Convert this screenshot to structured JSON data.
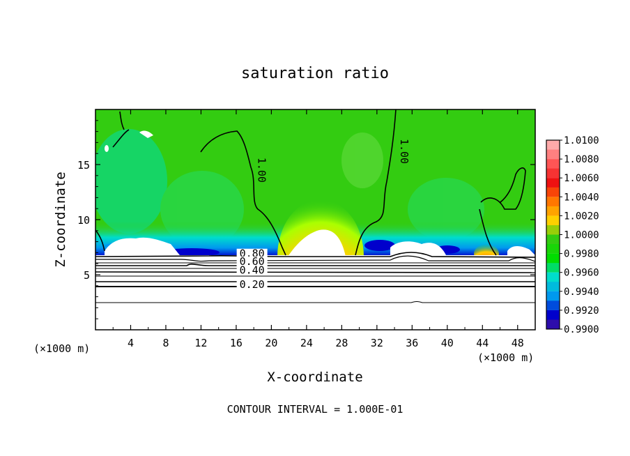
{
  "chart_data": {
    "type": "heatmap",
    "title": "saturation ratio",
    "xlabel": "X-coordinate",
    "ylabel": "Z-coordinate",
    "x_unit_note": "(×1000 m)",
    "y_unit_note": "(×1000 m)",
    "footer": "CONTOUR INTERVAL = 1.000E-01",
    "xlim": [
      0,
      50
    ],
    "ylim": [
      0,
      20
    ],
    "x_ticks": [
      4,
      8,
      12,
      16,
      20,
      24,
      28,
      32,
      36,
      40,
      44,
      48
    ],
    "y_ticks": [
      5,
      10,
      15
    ],
    "colorbar": {
      "levels": [
        1.01,
        1.008,
        1.006,
        1.004,
        1.002,
        1.0,
        0.998,
        0.996,
        0.994,
        0.992,
        0.99
      ],
      "labels": [
        "1.0100",
        "1.0080",
        "1.0060",
        "1.0040",
        "1.0020",
        "1.0000",
        "0.9980",
        "0.9960",
        "0.9940",
        "0.9920",
        "0.9900"
      ],
      "colors": [
        "#ffaaaa",
        "#ff5555",
        "#ee1111",
        "#ff7700",
        "#ffd000",
        "#33cc11",
        "#00dd00",
        "#00ddcc",
        "#0099ee",
        "#0000cc",
        "#5a1a8a"
      ]
    },
    "contour_labels": [
      {
        "text": "1.00",
        "x": 18.5,
        "z": 14.5
      },
      {
        "text": "1.00",
        "x": 34.7,
        "z": 16.2
      },
      {
        "text": "0.80",
        "x": 17.8,
        "z": 6.6
      },
      {
        "text": "0.60",
        "x": 17.8,
        "z": 5.9
      },
      {
        "text": "0.40",
        "x": 17.8,
        "z": 5.1
      },
      {
        "text": "0.20",
        "x": 17.8,
        "z": 3.8
      }
    ]
  }
}
